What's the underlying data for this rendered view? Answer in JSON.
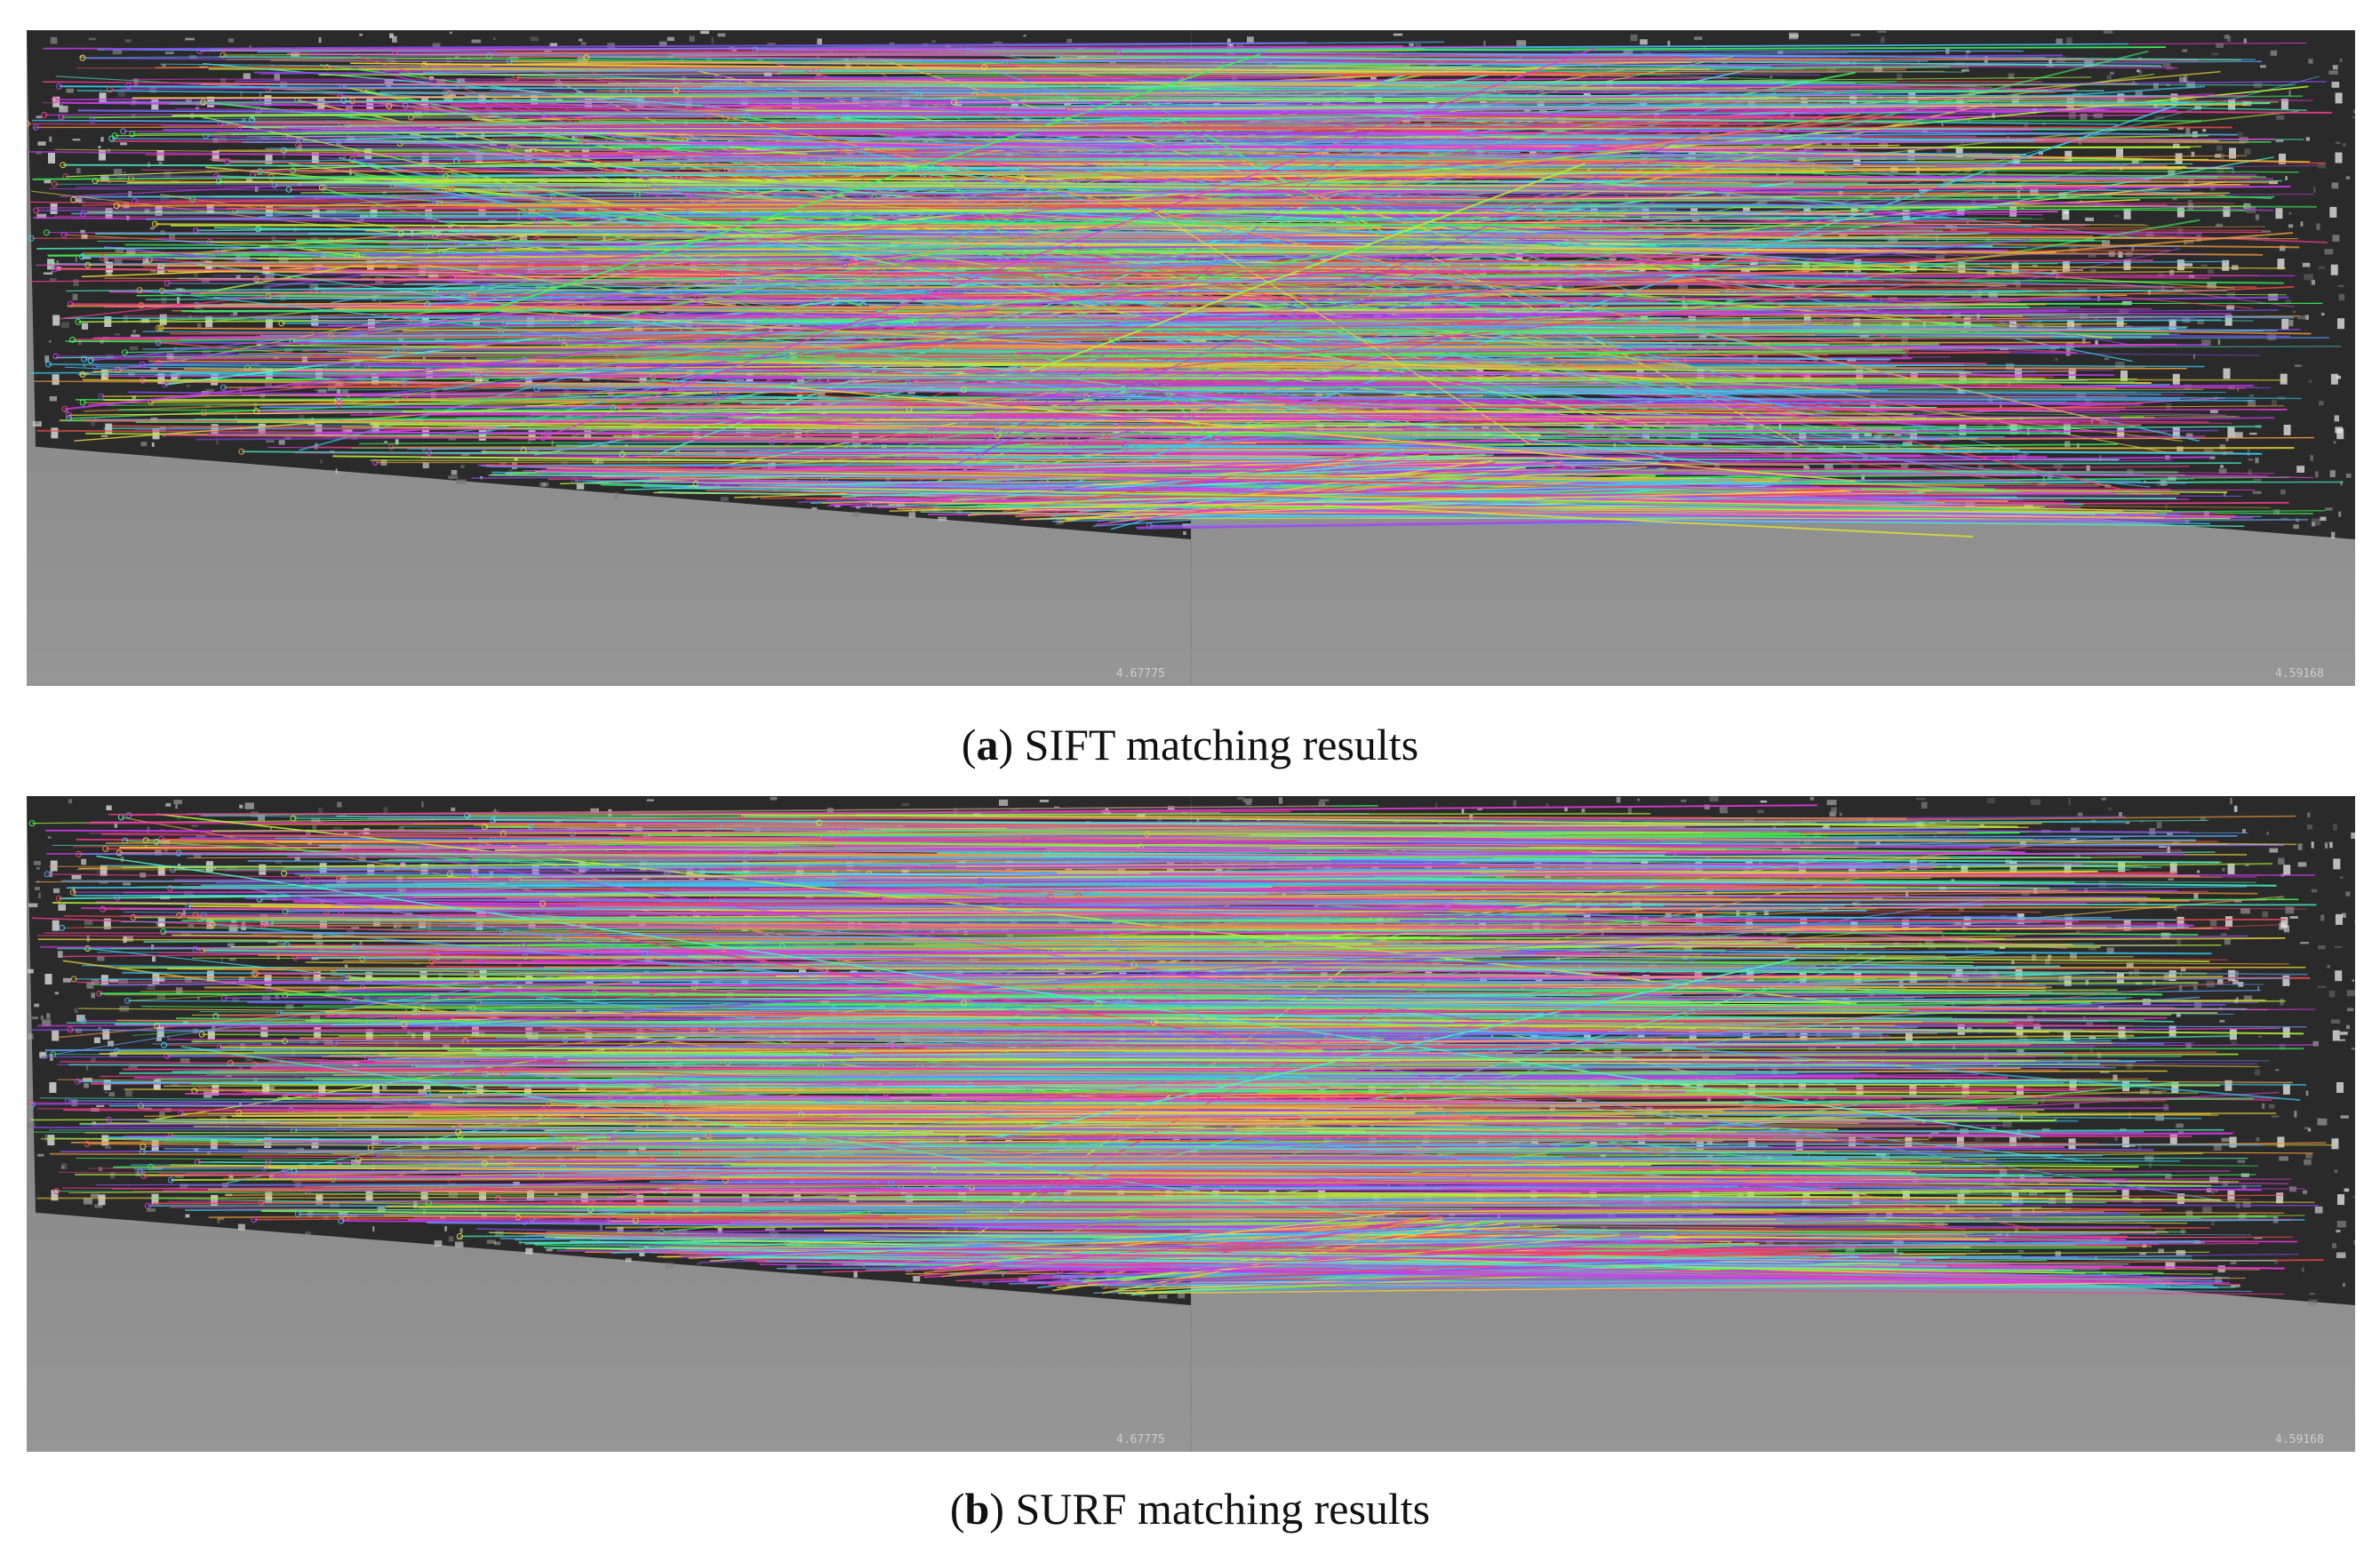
{
  "figure": {
    "panels": [
      {
        "id": "a",
        "letter": "a",
        "caption_text": ") SIFT matching results",
        "left_value": "4.67775",
        "right_value": "4.59168",
        "match_density": "dense",
        "cross_fraction": 0.18
      },
      {
        "id": "b",
        "letter": "b",
        "caption_text": ") SURF matching results",
        "left_value": "4.67775",
        "right_value": "4.59168",
        "match_density": "dense",
        "cross_fraction": 0.05
      }
    ],
    "colors": {
      "floor": "#8a8a8a",
      "rock_dark": "#2a2a2a",
      "rock_light": "#cfcfcf",
      "match_palette": [
        "#e83ad9",
        "#3af05a",
        "#f0d23a",
        "#3ac8f0",
        "#f04a4a",
        "#8a4af0",
        "#4af0c8",
        "#f09a3a",
        "#c83af0",
        "#5aa0f0",
        "#b0f03a",
        "#f03a8a"
      ]
    }
  }
}
